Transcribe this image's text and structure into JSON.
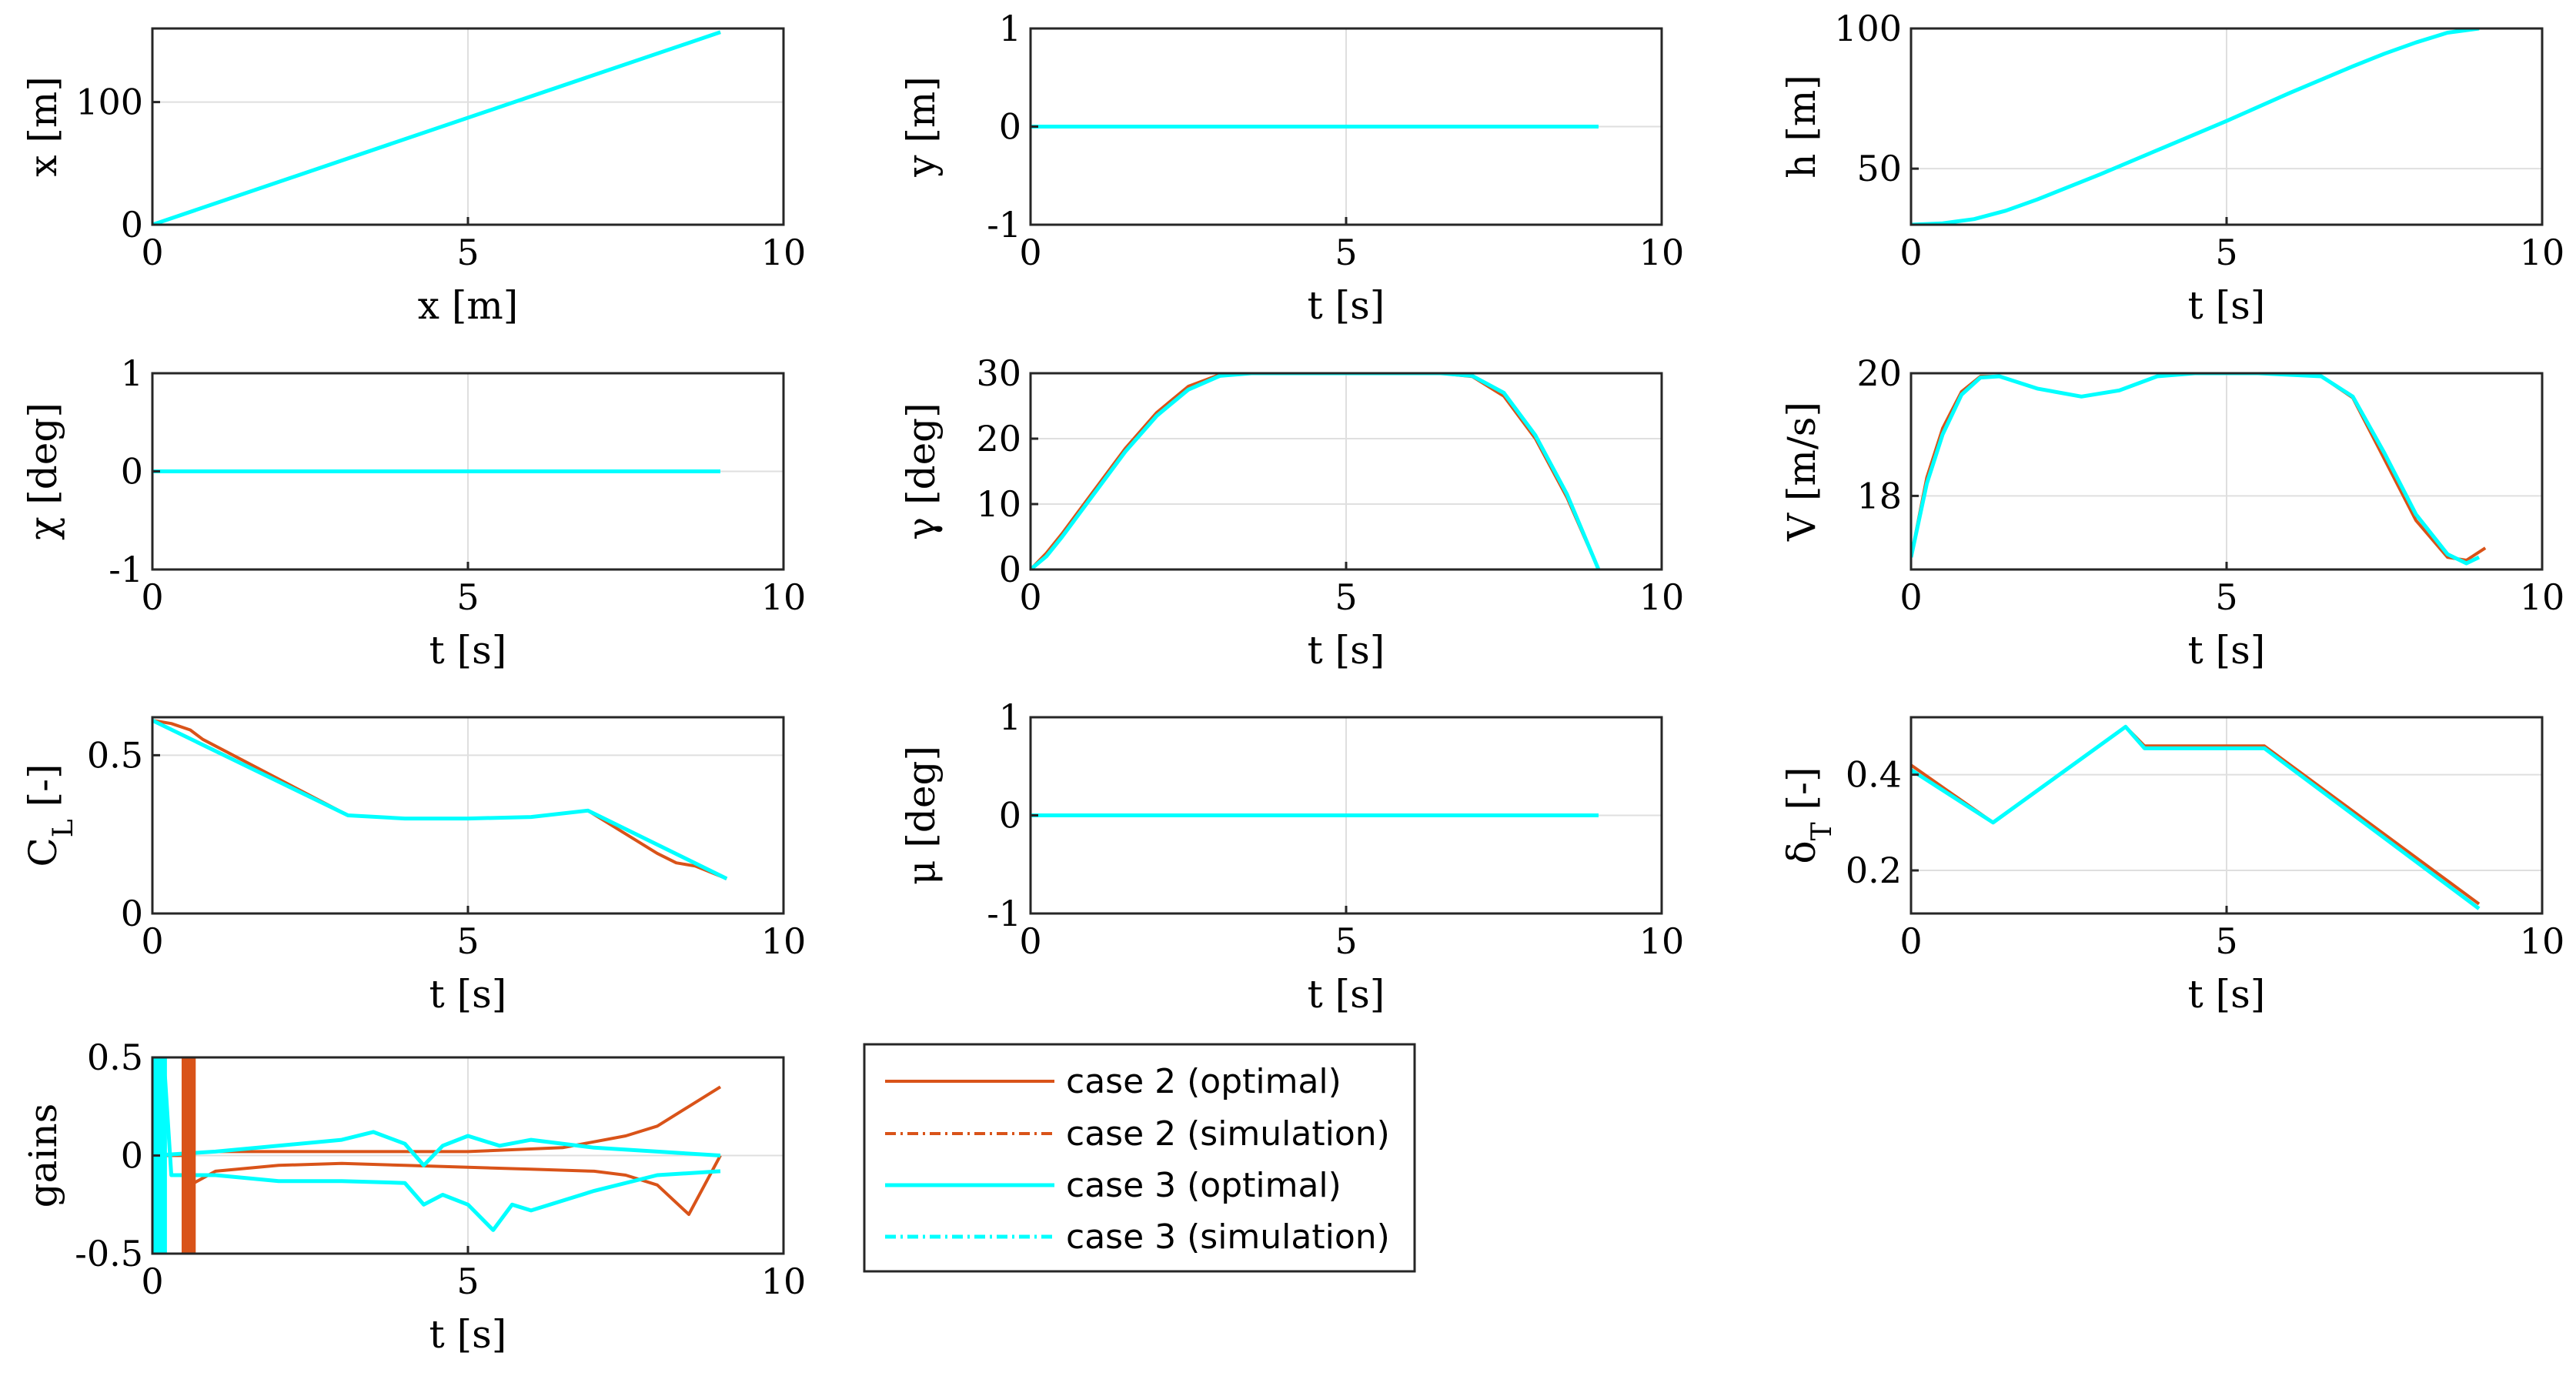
{
  "colors": {
    "case2": "#D95319",
    "case3": "#00FFFF",
    "grid": "#DFDFDF",
    "axis": "#262626"
  },
  "chart_data": [
    {
      "id": "x",
      "type": "line",
      "xlabel": "x [m]",
      "ylabel": "x [m]",
      "xlim": [
        0,
        10
      ],
      "ylim": [
        0,
        160
      ],
      "xticks": [
        0,
        5,
        10
      ],
      "yticks": [
        0,
        100
      ],
      "series": [
        {
          "name": "case 2 (optimal)",
          "x": [
            0,
            9
          ],
          "y": [
            0,
            157
          ]
        },
        {
          "name": "case 3 (optimal)",
          "x": [
            0,
            9
          ],
          "y": [
            0,
            157
          ]
        }
      ]
    },
    {
      "id": "y",
      "type": "line",
      "xlabel": "t [s]",
      "ylabel": "y [m]",
      "xlim": [
        0,
        10
      ],
      "ylim": [
        -1,
        1
      ],
      "xticks": [
        0,
        5,
        10
      ],
      "yticks": [
        -1,
        0,
        1
      ],
      "series": [
        {
          "name": "case 2 (optimal)",
          "x": [
            0,
            9
          ],
          "y": [
            0,
            0
          ]
        },
        {
          "name": "case 3 (optimal)",
          "x": [
            0,
            9
          ],
          "y": [
            0,
            0
          ]
        }
      ]
    },
    {
      "id": "h",
      "type": "line",
      "xlabel": "t [s]",
      "ylabel": "h [m]",
      "xlim": [
        0,
        10
      ],
      "ylim": [
        30,
        100
      ],
      "xticks": [
        0,
        5,
        10
      ],
      "yticks": [
        50,
        100
      ],
      "series": [
        {
          "name": "case 2 (optimal)",
          "x": [
            0,
            0.5,
            1,
            1.5,
            2,
            3,
            4,
            5,
            6,
            7,
            7.5,
            8,
            8.5,
            9
          ],
          "y": [
            30,
            30.5,
            32,
            35,
            39,
            48,
            57.5,
            67,
            77,
            86.5,
            91,
            95,
            98.5,
            100
          ]
        },
        {
          "name": "case 3 (optimal)",
          "x": [
            0,
            0.5,
            1,
            1.5,
            2,
            3,
            4,
            5,
            6,
            7,
            7.5,
            8,
            8.5,
            9
          ],
          "y": [
            30,
            30.5,
            32,
            35,
            39,
            48,
            57.5,
            67,
            77,
            86.5,
            91,
            95,
            98.5,
            100
          ]
        }
      ]
    },
    {
      "id": "chi",
      "type": "line",
      "xlabel": "t [s]",
      "ylabel": "χ [deg]",
      "xlim": [
        0,
        10
      ],
      "ylim": [
        -1,
        1
      ],
      "xticks": [
        0,
        5,
        10
      ],
      "yticks": [
        -1,
        0,
        1
      ],
      "series": [
        {
          "name": "case 2 (optimal)",
          "x": [
            0,
            9
          ],
          "y": [
            0,
            0
          ]
        },
        {
          "name": "case 3 (optimal)",
          "x": [
            0,
            9
          ],
          "y": [
            0,
            0
          ]
        }
      ]
    },
    {
      "id": "gamma",
      "type": "line",
      "xlabel": "t [s]",
      "ylabel": "γ [deg]",
      "xlim": [
        0,
        10
      ],
      "ylim": [
        0,
        30
      ],
      "xticks": [
        0,
        5,
        10
      ],
      "yticks": [
        0,
        10,
        20,
        30
      ],
      "series": [
        {
          "name": "case 2 (optimal)",
          "x": [
            0,
            0.25,
            0.5,
            1,
            1.5,
            2,
            2.5,
            3,
            3.5,
            6.5,
            7,
            7.5,
            8,
            8.5,
            9
          ],
          "y": [
            0,
            2.5,
            5.5,
            12,
            18.5,
            24,
            28,
            29.8,
            30,
            30,
            29.5,
            26.5,
            20,
            11,
            0
          ]
        },
        {
          "name": "case 3 (optimal)",
          "x": [
            0,
            0.25,
            0.5,
            1,
            1.5,
            2,
            2.5,
            3,
            3.5,
            6.5,
            7,
            7.5,
            8,
            8.5,
            9
          ],
          "y": [
            0,
            2,
            5,
            11.5,
            18,
            23.5,
            27.5,
            29.6,
            30,
            30,
            29.6,
            27,
            20.5,
            11.5,
            0
          ]
        }
      ]
    },
    {
      "id": "V",
      "type": "line",
      "xlabel": "t [s]",
      "ylabel": "V [m/s]",
      "xlim": [
        0,
        10
      ],
      "ylim": [
        16.8,
        20
      ],
      "xticks": [
        0,
        5,
        10
      ],
      "yticks": [
        18,
        20
      ],
      "series": [
        {
          "name": "case 2 (optimal)",
          "x": [
            0,
            0.25,
            0.5,
            0.8,
            1.1,
            1.4,
            2,
            2.7,
            3.3,
            3.9,
            4.5,
            5.5,
            6.5,
            7,
            7.5,
            8,
            8.5,
            8.8,
            9.1
          ],
          "y": [
            17,
            18.3,
            19.1,
            19.7,
            19.95,
            19.95,
            19.75,
            19.62,
            19.72,
            19.95,
            20,
            20,
            19.95,
            19.6,
            18.6,
            17.6,
            17,
            16.95,
            17.15
          ]
        },
        {
          "name": "case 3 (optimal)",
          "x": [
            0,
            0.25,
            0.5,
            0.8,
            1.1,
            1.4,
            2,
            2.7,
            3.3,
            3.9,
            4.5,
            5.5,
            6.5,
            7,
            7.5,
            8,
            8.5,
            8.8,
            9
          ],
          "y": [
            17,
            18.2,
            19,
            19.65,
            19.93,
            19.95,
            19.75,
            19.62,
            19.72,
            19.95,
            20,
            20,
            19.95,
            19.62,
            18.7,
            17.7,
            17.05,
            16.9,
            17
          ]
        }
      ]
    },
    {
      "id": "CL",
      "type": "line",
      "xlabel": "t [s]",
      "ylabel": "C_L [-]",
      "xlim": [
        0,
        10
      ],
      "ylim": [
        0,
        0.62
      ],
      "xticks": [
        0,
        5,
        10
      ],
      "yticks": [
        0,
        0.5
      ],
      "series": [
        {
          "name": "case 2 (optimal)",
          "x": [
            0,
            0.3,
            0.6,
            0.8,
            3.1,
            4,
            5,
            6,
            6.9,
            8,
            8.3,
            8.6,
            9.1
          ],
          "y": [
            0.61,
            0.6,
            0.58,
            0.55,
            0.31,
            0.3,
            0.3,
            0.305,
            0.325,
            0.19,
            0.16,
            0.15,
            0.11
          ]
        },
        {
          "name": "case 3 (optimal)",
          "x": [
            0,
            3.1,
            4,
            5,
            6,
            6.9,
            9.1
          ],
          "y": [
            0.61,
            0.31,
            0.3,
            0.3,
            0.305,
            0.325,
            0.11
          ]
        }
      ]
    },
    {
      "id": "mu",
      "type": "line",
      "xlabel": "t [s]",
      "ylabel": "μ [deg]",
      "xlim": [
        0,
        10
      ],
      "ylim": [
        -1,
        1
      ],
      "xticks": [
        0,
        5,
        10
      ],
      "yticks": [
        -1,
        0,
        1
      ],
      "series": [
        {
          "name": "case 2 (optimal)",
          "x": [
            0,
            9
          ],
          "y": [
            0,
            0
          ]
        },
        {
          "name": "case 3 (optimal)",
          "x": [
            0,
            9
          ],
          "y": [
            0,
            0
          ]
        }
      ]
    },
    {
      "id": "deltaT",
      "type": "line",
      "xlabel": "t [s]",
      "ylabel": "δ_T [-]",
      "xlim": [
        0,
        10
      ],
      "ylim": [
        0.11,
        0.52
      ],
      "xticks": [
        0,
        5,
        10
      ],
      "yticks": [
        0.2,
        0.4
      ],
      "series": [
        {
          "name": "case 2 (optimal)",
          "x": [
            0,
            1.3,
            3.4,
            3.7,
            5.6,
            9
          ],
          "y": [
            0.42,
            0.3,
            0.5,
            0.46,
            0.46,
            0.13
          ]
        },
        {
          "name": "case 3 (optimal)",
          "x": [
            0,
            1.3,
            3.4,
            3.7,
            5.6,
            9
          ],
          "y": [
            0.41,
            0.3,
            0.5,
            0.455,
            0.455,
            0.12
          ]
        }
      ]
    },
    {
      "id": "gains",
      "type": "line",
      "xlabel": "t [s]",
      "ylabel": "gains",
      "xlim": [
        0,
        10
      ],
      "ylim": [
        -0.5,
        0.5
      ],
      "xticks": [
        0,
        5,
        10
      ],
      "yticks": [
        -0.5,
        0,
        0.5
      ],
      "series": [
        {
          "name": "case 2 (optimal)",
          "x": [
            0,
            0.5,
            0.6,
            1,
            2,
            3,
            4,
            5,
            6,
            7,
            7.5,
            8,
            8.5,
            9
          ],
          "y": [
            0,
            0,
            -0.15,
            -0.08,
            -0.05,
            -0.04,
            -0.05,
            -0.06,
            -0.07,
            -0.08,
            -0.1,
            -0.15,
            -0.3,
            0.0
          ]
        },
        {
          "name": "case 2 (optimal)",
          "x": [
            0,
            1,
            3,
            5,
            6.5,
            7.5,
            8,
            8.5,
            9
          ],
          "y": [
            0,
            0.02,
            0.02,
            0.02,
            0.04,
            0.1,
            0.15,
            0.25,
            0.35
          ]
        },
        {
          "name": "case 3 (optimal)",
          "x": [
            0,
            0.1,
            0.2,
            0.3,
            1,
            2,
            3,
            4,
            4.3,
            4.6,
            5,
            5.4,
            5.7,
            6,
            7,
            8,
            9
          ],
          "y": [
            0.5,
            -0.5,
            0.4,
            -0.1,
            -0.1,
            -0.13,
            -0.13,
            -0.14,
            -0.25,
            -0.2,
            -0.25,
            -0.38,
            -0.25,
            -0.28,
            -0.18,
            -0.1,
            -0.08
          ]
        },
        {
          "name": "case 3 (optimal)",
          "x": [
            0,
            1,
            2,
            3,
            3.5,
            4,
            4.3,
            4.6,
            5,
            5.5,
            6,
            7,
            8,
            9
          ],
          "y": [
            0,
            0.02,
            0.05,
            0.08,
            0.12,
            0.06,
            -0.05,
            0.05,
            0.1,
            0.05,
            0.08,
            0.04,
            0.02,
            0.0
          ]
        }
      ]
    }
  ],
  "legend": {
    "entries": [
      {
        "label": "case 2 (optimal)",
        "color": "#D95319",
        "dash": "solid"
      },
      {
        "label": "case 2 (simulation)",
        "color": "#D95319",
        "dash": "dashdot"
      },
      {
        "label": "case 3 (optimal)",
        "color": "#00FFFF",
        "dash": "solid"
      },
      {
        "label": "case 3 (simulation)",
        "color": "#00FFFF",
        "dash": "dashdot"
      }
    ]
  }
}
